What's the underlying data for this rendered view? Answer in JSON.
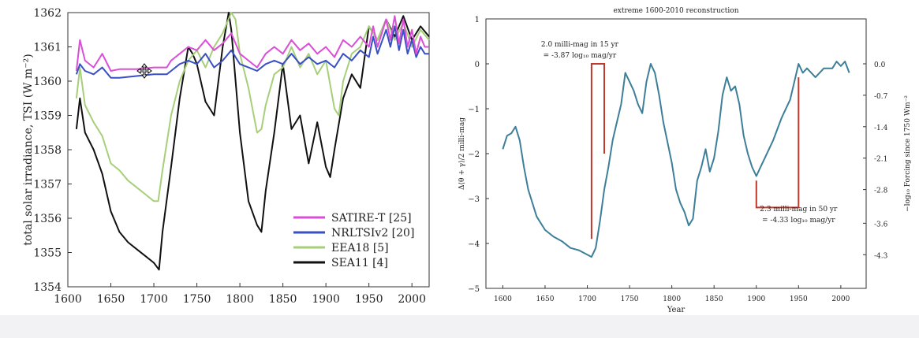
{
  "chart_data": [
    {
      "type": "line",
      "ylabel": "total solar irradiance, TSI (W m⁻²)",
      "xlim": [
        1600,
        2020
      ],
      "ylim": [
        1354,
        1362
      ],
      "x_ticks": [
        "1600",
        "1650",
        "1700",
        "1750",
        "1800",
        "1850",
        "1900",
        "1950",
        "2000"
      ],
      "y_ticks": [
        "1354",
        "1355",
        "1356",
        "1357",
        "1358",
        "1359",
        "1360",
        "1361",
        "1362"
      ],
      "legend_position": "lower-right",
      "series": [
        {
          "name": "SATIRE-T [25]",
          "color": "#d94fd6",
          "x": [
            1610,
            1614,
            1620,
            1630,
            1640,
            1650,
            1660,
            1680,
            1700,
            1715,
            1720,
            1730,
            1740,
            1750,
            1760,
            1770,
            1780,
            1790,
            1800,
            1810,
            1820,
            1830,
            1840,
            1850,
            1860,
            1870,
            1880,
            1890,
            1900,
            1910,
            1920,
            1930,
            1940,
            1950,
            1955,
            1960,
            1970,
            1975,
            1980,
            1985,
            1990,
            1995,
            2000,
            2005,
            2010,
            2015,
            2020
          ],
          "y": [
            1360.3,
            1361.2,
            1360.6,
            1360.4,
            1360.8,
            1360.3,
            1360.35,
            1360.35,
            1360.4,
            1360.4,
            1360.6,
            1360.8,
            1361.0,
            1360.9,
            1361.2,
            1360.9,
            1361.1,
            1361.4,
            1360.8,
            1360.6,
            1360.4,
            1360.8,
            1361.0,
            1360.8,
            1361.2,
            1360.9,
            1361.1,
            1360.8,
            1361.0,
            1360.7,
            1361.2,
            1361.0,
            1361.3,
            1361.0,
            1361.6,
            1361.0,
            1361.8,
            1361.2,
            1361.9,
            1361.1,
            1361.8,
            1361.0,
            1361.5,
            1360.8,
            1361.3,
            1361.0,
            1361.0
          ]
        },
        {
          "name": "NRLTSIv2 [20]",
          "color": "#3a4fc4",
          "x": [
            1610,
            1614,
            1620,
            1630,
            1640,
            1650,
            1660,
            1680,
            1700,
            1715,
            1720,
            1730,
            1740,
            1750,
            1760,
            1770,
            1780,
            1790,
            1800,
            1810,
            1820,
            1830,
            1840,
            1850,
            1860,
            1870,
            1880,
            1890,
            1900,
            1910,
            1920,
            1930,
            1940,
            1950,
            1955,
            1960,
            1970,
            1975,
            1980,
            1985,
            1990,
            1995,
            2000,
            2005,
            2010,
            2015,
            2020
          ],
          "y": [
            1360.2,
            1360.5,
            1360.3,
            1360.2,
            1360.4,
            1360.1,
            1360.1,
            1360.15,
            1360.2,
            1360.2,
            1360.3,
            1360.5,
            1360.6,
            1360.5,
            1360.8,
            1360.4,
            1360.6,
            1360.9,
            1360.5,
            1360.4,
            1360.3,
            1360.5,
            1360.6,
            1360.5,
            1360.8,
            1360.5,
            1360.7,
            1360.5,
            1360.6,
            1360.4,
            1360.8,
            1360.6,
            1360.9,
            1360.7,
            1361.3,
            1360.8,
            1361.5,
            1361.0,
            1361.6,
            1360.9,
            1361.5,
            1360.8,
            1361.2,
            1360.7,
            1361.0,
            1360.8,
            1360.8
          ]
        },
        {
          "name": "EEA18 [5]",
          "color": "#a7cf7a",
          "x": [
            1610,
            1614,
            1620,
            1630,
            1640,
            1650,
            1660,
            1670,
            1680,
            1690,
            1700,
            1705,
            1710,
            1720,
            1730,
            1740,
            1750,
            1760,
            1770,
            1780,
            1790,
            1795,
            1800,
            1810,
            1820,
            1825,
            1830,
            1840,
            1850,
            1860,
            1870,
            1880,
            1890,
            1900,
            1910,
            1915,
            1920,
            1930,
            1940,
            1950,
            1960,
            1970,
            1980,
            1990,
            2000,
            2010,
            2020
          ],
          "y": [
            1359.5,
            1360.4,
            1359.3,
            1358.8,
            1358.4,
            1357.6,
            1357.4,
            1357.1,
            1356.9,
            1356.7,
            1356.5,
            1356.5,
            1357.4,
            1359.0,
            1360.0,
            1360.6,
            1360.9,
            1360.4,
            1361.0,
            1361.4,
            1362.0,
            1361.8,
            1360.8,
            1359.8,
            1358.5,
            1358.6,
            1359.3,
            1360.2,
            1360.4,
            1361.0,
            1360.4,
            1360.8,
            1360.2,
            1360.6,
            1359.2,
            1359.0,
            1360.0,
            1360.8,
            1361.0,
            1361.6,
            1361.2,
            1361.8,
            1361.2,
            1361.7,
            1361.0,
            1361.5,
            1361.2
          ]
        },
        {
          "name": "SEA11 [4]",
          "color": "#111111",
          "x": [
            1610,
            1614,
            1620,
            1630,
            1640,
            1650,
            1660,
            1670,
            1680,
            1690,
            1700,
            1706,
            1710,
            1720,
            1730,
            1740,
            1745,
            1750,
            1760,
            1770,
            1780,
            1787,
            1790,
            1800,
            1810,
            1820,
            1825,
            1830,
            1840,
            1850,
            1860,
            1870,
            1880,
            1890,
            1900,
            1905,
            1910,
            1920,
            1930,
            1940,
            1950,
            1960,
            1970,
            1980,
            1990,
            2000,
            2010,
            2020
          ],
          "y": [
            1358.6,
            1359.5,
            1358.5,
            1358.0,
            1357.3,
            1356.2,
            1355.6,
            1355.3,
            1355.1,
            1354.9,
            1354.7,
            1354.5,
            1355.6,
            1357.5,
            1359.5,
            1361.0,
            1360.8,
            1360.5,
            1359.4,
            1359.0,
            1361.0,
            1362.0,
            1361.5,
            1358.5,
            1356.5,
            1355.8,
            1355.6,
            1356.8,
            1358.5,
            1360.5,
            1358.6,
            1359.0,
            1357.6,
            1358.8,
            1357.5,
            1357.2,
            1358.0,
            1359.5,
            1360.2,
            1359.8,
            1361.6,
            1361.2,
            1361.8,
            1361.3,
            1361.9,
            1361.2,
            1361.6,
            1361.3
          ]
        }
      ]
    },
    {
      "type": "line",
      "title": "extreme 1600-2010 reconstruction",
      "xlabel": "Year",
      "ylabel": "Δ⟨θ + γ⟩/2 milli-mag",
      "ylabel_right": "−log₁₀ Forcing since 1750 Wm⁻²",
      "xlim": [
        1580,
        2030
      ],
      "ylim": [
        -5,
        1
      ],
      "x_ticks": [
        "1600",
        "1650",
        "1700",
        "1750",
        "1800",
        "1850",
        "1900",
        "1950",
        "2000"
      ],
      "y_ticks": [
        "1",
        "0",
        "−1",
        "−2",
        "−3",
        "−4",
        "−5"
      ],
      "right_ticks": [
        {
          "value": 0,
          "label": "0.0"
        },
        {
          "value": -0.7,
          "label": "-0.7"
        },
        {
          "value": -1.4,
          "label": "-1.4"
        },
        {
          "value": -2.1,
          "label": "-2.1"
        },
        {
          "value": -2.8,
          "label": "-2.8"
        },
        {
          "value": -3.55,
          "label": "-3.6"
        },
        {
          "value": -4.25,
          "label": "-4.3"
        }
      ],
      "series": [
        {
          "color": "#3d7f99",
          "x": [
            1600,
            1605,
            1610,
            1615,
            1620,
            1625,
            1630,
            1640,
            1650,
            1660,
            1670,
            1680,
            1690,
            1700,
            1705,
            1710,
            1715,
            1720,
            1725,
            1730,
            1735,
            1740,
            1745,
            1750,
            1755,
            1760,
            1765,
            1770,
            1775,
            1780,
            1785,
            1790,
            1800,
            1805,
            1810,
            1815,
            1820,
            1825,
            1830,
            1835,
            1840,
            1845,
            1850,
            1855,
            1860,
            1865,
            1870,
            1875,
            1880,
            1885,
            1890,
            1895,
            1900,
            1905,
            1910,
            1920,
            1930,
            1940,
            1945,
            1950,
            1955,
            1960,
            1970,
            1980,
            1990,
            1995,
            2000,
            2005,
            2010
          ],
          "y": [
            -1.9,
            -1.6,
            -1.55,
            -1.4,
            -1.7,
            -2.3,
            -2.8,
            -3.4,
            -3.7,
            -3.85,
            -3.95,
            -4.1,
            -4.15,
            -4.25,
            -4.3,
            -4.1,
            -3.5,
            -2.8,
            -2.3,
            -1.7,
            -1.3,
            -0.9,
            -0.2,
            -0.4,
            -0.6,
            -0.9,
            -1.1,
            -0.4,
            0.0,
            -0.2,
            -0.7,
            -1.3,
            -2.2,
            -2.8,
            -3.1,
            -3.3,
            -3.6,
            -3.45,
            -2.6,
            -2.3,
            -1.9,
            -2.4,
            -2.1,
            -1.5,
            -0.7,
            -0.3,
            -0.6,
            -0.5,
            -0.9,
            -1.6,
            -2.0,
            -2.3,
            -2.5,
            -2.3,
            -2.1,
            -1.7,
            -1.2,
            -0.8,
            -0.4,
            0.0,
            -0.2,
            -0.1,
            -0.3,
            -0.1,
            -0.1,
            0.05,
            -0.05,
            0.05,
            -0.2
          ]
        }
      ],
      "annotations": [
        {
          "line1": "2.0 milli-mag in 15 yr",
          "line2": "= -3.87 log₁₀ mag/yr"
        },
        {
          "line1": "2.3 milli-mag in 50 yr",
          "line2": "= -4.33 log₁₀ mag/yr"
        }
      ],
      "brackets": [
        {
          "x": [
            1705,
            1705,
            1720,
            1720
          ],
          "y": [
            -3.9,
            0.0,
            0.0,
            -2.0
          ]
        },
        {
          "x": [
            1900,
            1900,
            1950,
            1950
          ],
          "y": [
            -2.6,
            -3.2,
            -3.2,
            -0.3
          ]
        }
      ]
    }
  ]
}
